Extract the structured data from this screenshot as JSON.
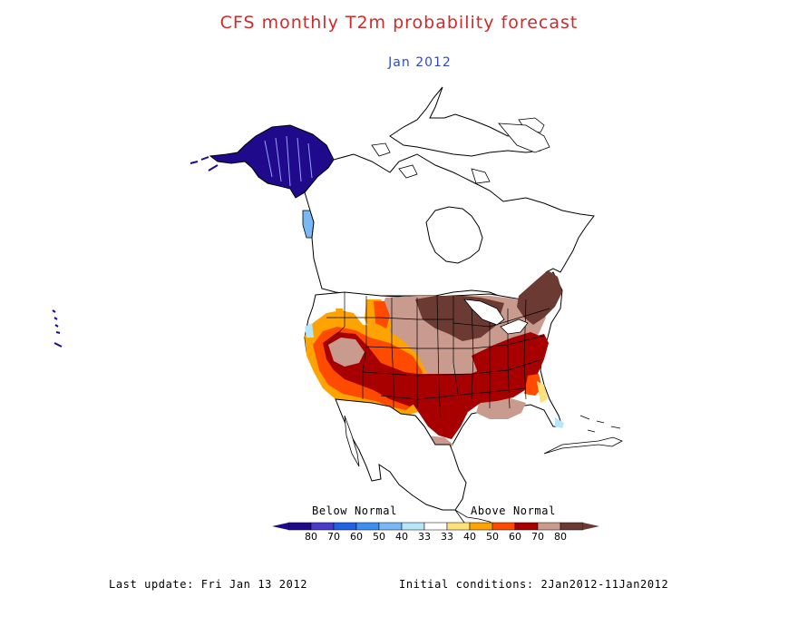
{
  "title": "CFS monthly T2m probability forecast",
  "subtitle": "Jan 2012",
  "colors": {
    "title": "#d02a2a",
    "subtitle": "#2f49c9",
    "coastline": "#000000"
  },
  "legend": {
    "below_label": "Below Normal",
    "above_label": "Above Normal",
    "below_colors": [
      "#1f0a8c",
      "#4a3cc8",
      "#1e63e6",
      "#3c8ff0",
      "#78b8f5",
      "#b6e6fa"
    ],
    "above_colors": [
      "#ffffff",
      "#ffe17a",
      "#ffa300",
      "#ff4b00",
      "#a80000",
      "#c89b8e",
      "#6b3a32"
    ],
    "ticks": [
      "80",
      "70",
      "60",
      "50",
      "40",
      "33",
      "33",
      "40",
      "50",
      "60",
      "70",
      "80"
    ]
  },
  "footer": {
    "last_update": "Last update: Fri Jan 13 2012",
    "initial_conditions": "Initial conditions: 2Jan2012-11Jan2012"
  }
}
